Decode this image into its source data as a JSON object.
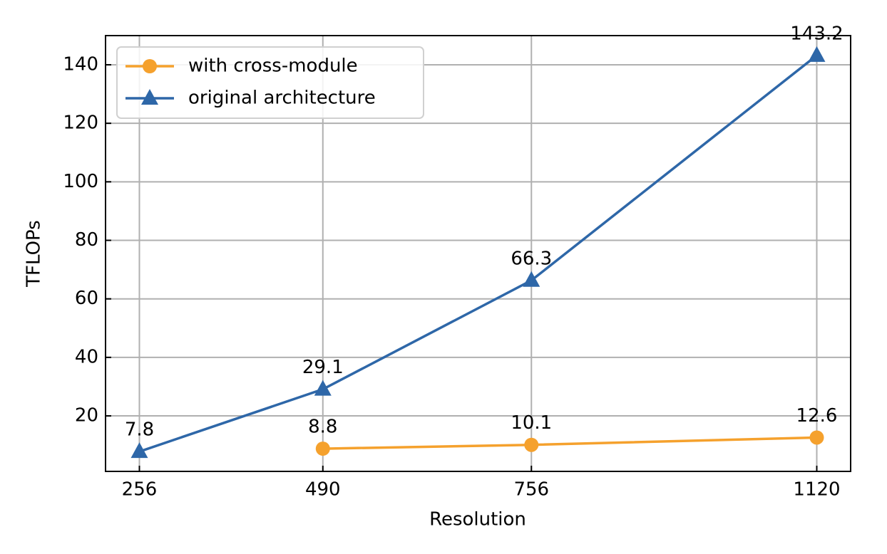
{
  "chart_data": {
    "type": "line",
    "x": [
      256,
      490,
      756,
      1120
    ],
    "series": [
      {
        "name": "with cross-module",
        "color": "#f5a12d",
        "marker": "circle",
        "values": [
          null,
          8.8,
          10.1,
          12.6
        ]
      },
      {
        "name": "original architecture",
        "color": "#2e67a8",
        "marker": "triangle",
        "values": [
          7.8,
          29.1,
          66.3,
          143.2
        ]
      }
    ],
    "xlabel": "Resolution",
    "ylabel": "TFLOPs",
    "xlim": [
      212.8,
      1163.2
    ],
    "xticks": [
      256,
      490,
      756,
      1120
    ],
    "ylim": [
      1.03,
      149.97
    ],
    "yticks": [
      20,
      40,
      60,
      80,
      100,
      120,
      140
    ],
    "grid": true,
    "legend": "upper left"
  }
}
